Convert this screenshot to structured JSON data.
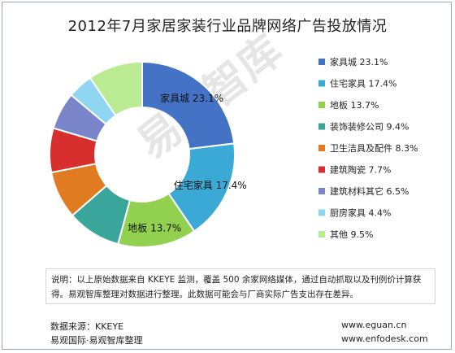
{
  "title": "2012年7月家居家装行业品牌网络广告投放情况",
  "watermark": "易观智库",
  "chart_data": {
    "type": "pie",
    "donut": true,
    "legend": "right",
    "slices": [
      {
        "label": "家具城",
        "value": 23.1,
        "color": "#4472c4",
        "value_label": "23.1%"
      },
      {
        "label": "住宅家具",
        "value": 17.4,
        "color": "#3aa9d6",
        "value_label": "17.4%"
      },
      {
        "label": "地板",
        "value": 13.7,
        "color": "#92d050",
        "value_label": "13.7%"
      },
      {
        "label": "装饰装修公司",
        "value": 9.4,
        "color": "#3aa59b",
        "value_label": "9.4%"
      },
      {
        "label": "卫生洁具及配件",
        "value": 8.3,
        "color": "#e07b22",
        "value_label": "8.3%"
      },
      {
        "label": "建筑陶瓷",
        "value": 7.7,
        "color": "#d72e2e",
        "value_label": "7.7%"
      },
      {
        "label": "建筑材料其它",
        "value": 6.5,
        "color": "#7a85c9",
        "value_label": "6.5%"
      },
      {
        "label": "厨房家具",
        "value": 4.4,
        "color": "#8fd6f2",
        "value_label": "4.4%"
      },
      {
        "label": "其他",
        "value": 9.5,
        "color": "#b9ec92",
        "value_label": "9.5%"
      }
    ]
  },
  "note": "说明：以上原始数据来自 KKEYE 监测，覆盖 500 余家网络媒体，通过自动抓取以及刊例价计算获得。易观智库整理对数据进行整理。此数据可能会与厂商实际广告支出存在差异。",
  "footer": {
    "source": "数据来源：KKEYE",
    "org": "易观国际·易观智库整理",
    "url1": "www.eguan.cn",
    "url2": "www.enfodesk.com"
  }
}
